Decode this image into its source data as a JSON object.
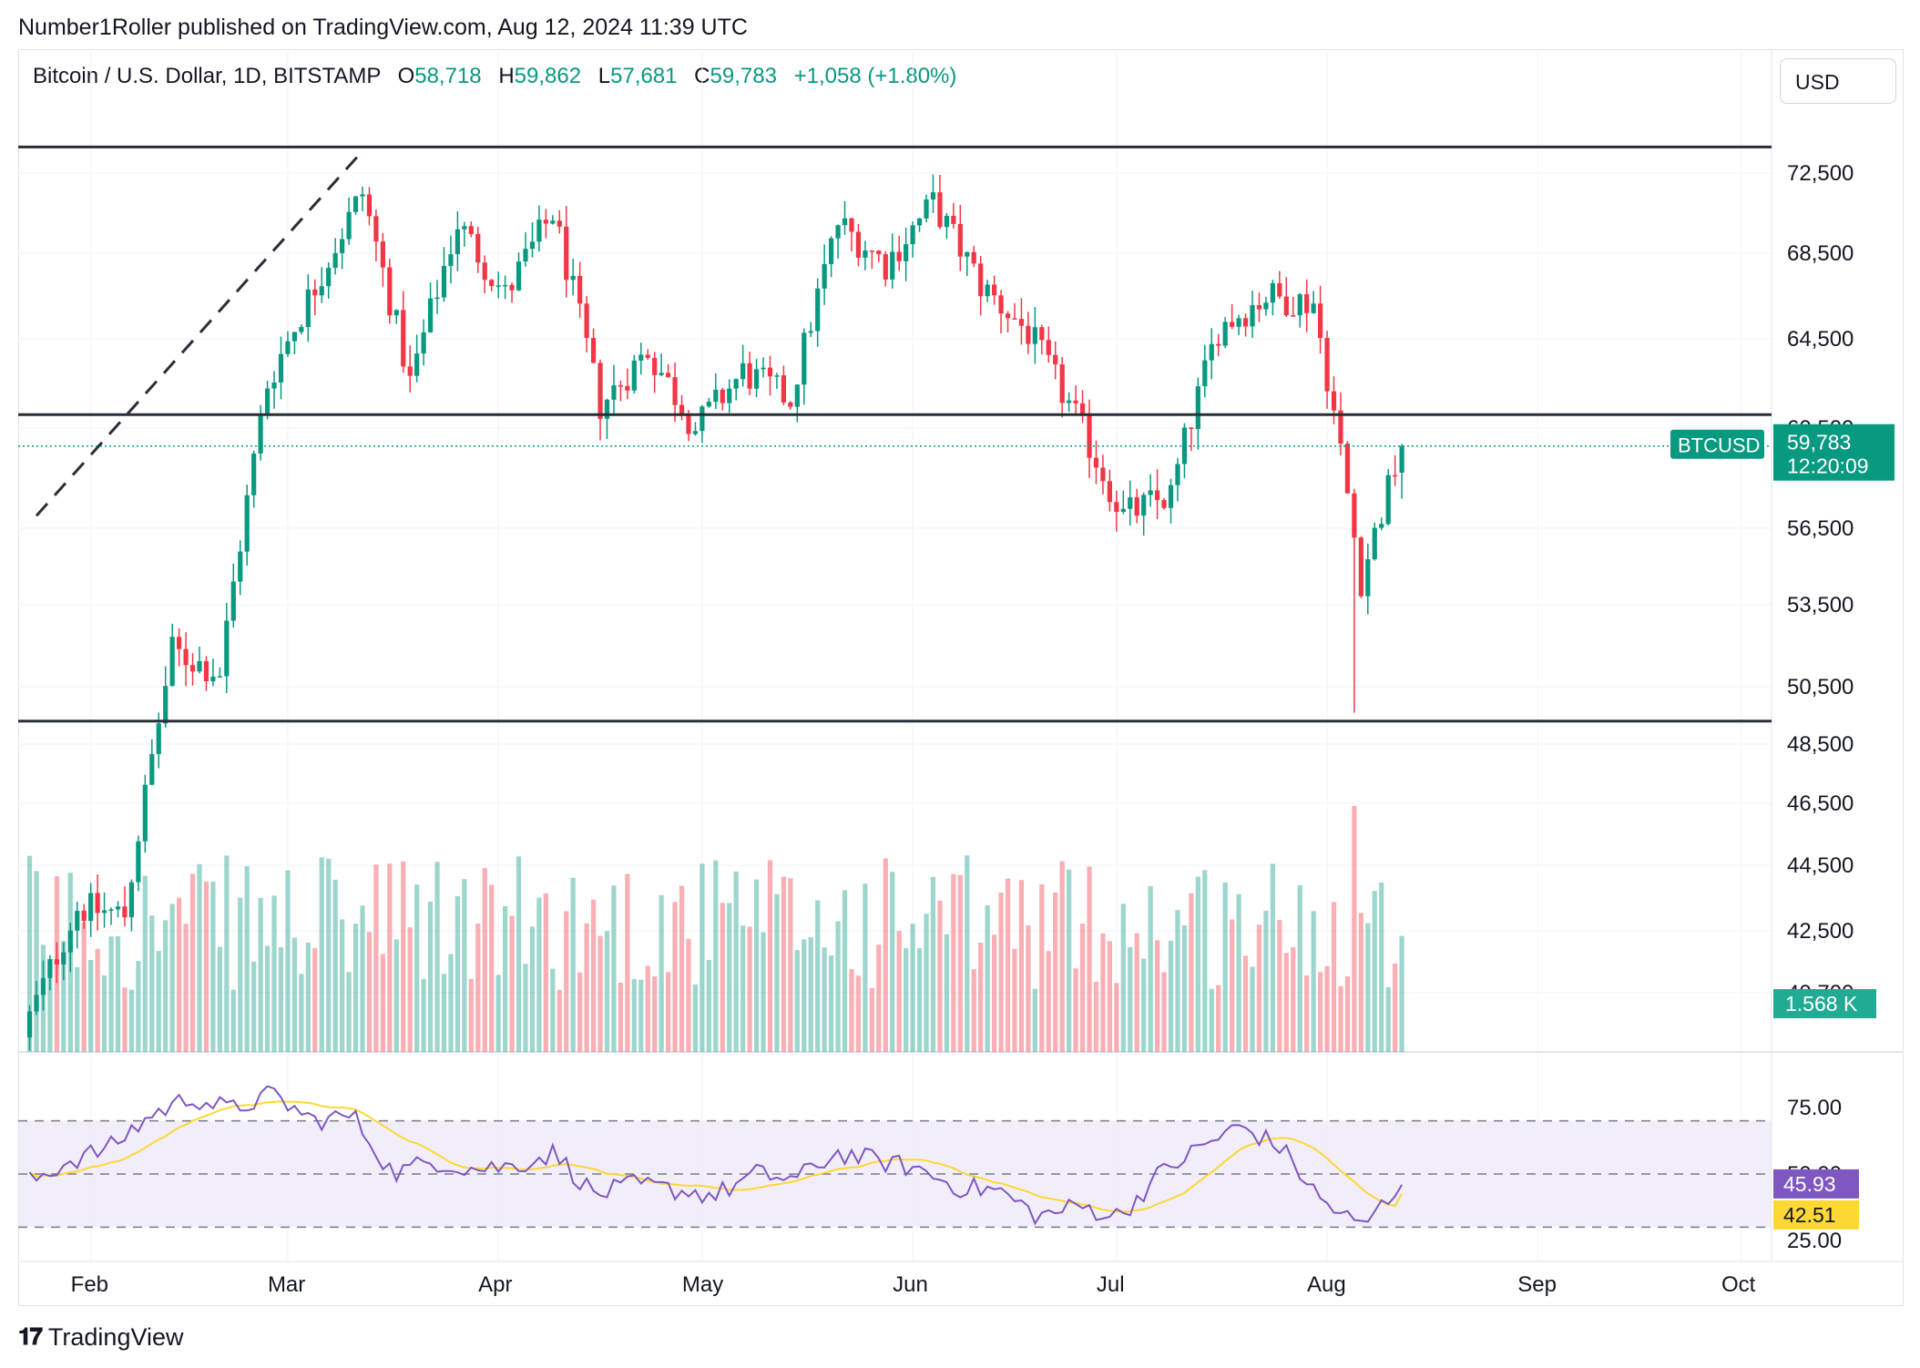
{
  "header": {
    "published_by": "Number1Roller published on TradingView.com, Aug 12, 2024 11:39 UTC",
    "symbol_line": "Bitcoin / U.S. Dollar, 1D, BITSTAMP",
    "open_label": "O",
    "open": "58,718",
    "high_label": "H",
    "high": "59,862",
    "low_label": "L",
    "low": "57,681",
    "close_label": "C",
    "close": "59,783",
    "change": "+1,058 (+1.80%)",
    "currency_button": "USD"
  },
  "footer": {
    "logo_icon": "tradingview-logo-icon",
    "brand": "TradingView"
  },
  "colors": {
    "up": "#089981",
    "down": "#f23645",
    "rsi": "#7e57c2",
    "rsi_ma": "#fdd835",
    "rsi_band": "#ede7f6"
  },
  "chart_data": [
    {
      "type": "candlestick",
      "price_axis_ticks": [
        "72,500",
        "68,500",
        "64,500",
        "60,500",
        "56,500",
        "53,500",
        "50,500",
        "48,500",
        "46,500",
        "44,500",
        "42,500",
        "40,700"
      ],
      "price_axis_values": [
        72500,
        68500,
        64500,
        60500,
        56500,
        53500,
        50500,
        48500,
        46500,
        44500,
        42500,
        40700
      ],
      "time_axis_ticks": [
        "Feb",
        "Mar",
        "Apr",
        "May",
        "Jun",
        "Jul",
        "Aug",
        "Sep",
        "Oct"
      ],
      "last_price": {
        "symbol": "BTCUSD",
        "value": "59,783",
        "countdown": "12:20:09"
      },
      "volume_badge": "1.568 K",
      "horizontal_levels": [
        73800,
        61100,
        49300
      ],
      "trendline": {
        "from": [
          "2024-01-24",
          57000
        ],
        "to": [
          "2024-03-12",
          73600
        ]
      },
      "ohlc_sample": {
        "dates": [
          "2024-01-23",
          "2024-01-30",
          "2024-02-06",
          "2024-02-13",
          "2024-02-20",
          "2024-02-27",
          "2024-03-05",
          "2024-03-12",
          "2024-03-19",
          "2024-03-26",
          "2024-04-02",
          "2024-04-09",
          "2024-04-16",
          "2024-04-23",
          "2024-04-30",
          "2024-05-07",
          "2024-05-14",
          "2024-05-21",
          "2024-05-28",
          "2024-06-04",
          "2024-06-11",
          "2024-06-18",
          "2024-06-25",
          "2024-07-02",
          "2024-07-09",
          "2024-07-16",
          "2024-07-23",
          "2024-07-30",
          "2024-08-06",
          "2024-08-12"
        ],
        "close": [
          40000,
          43200,
          43000,
          51800,
          51000,
          62500,
          67000,
          71500,
          62500,
          70000,
          66500,
          70500,
          61500,
          64000,
          60500,
          63000,
          61800,
          70000,
          68000,
          71000,
          67000,
          64800,
          61000,
          57000,
          57800,
          65000,
          66500,
          66200,
          54500,
          59783
        ]
      }
    },
    {
      "type": "line",
      "name": "RSI",
      "axis_ticks": [
        "75.00",
        "50.00",
        "25.00"
      ],
      "axis_values": [
        75,
        50,
        25
      ],
      "current_rsi": "45.93",
      "current_ma": "42.51",
      "bands": [
        70,
        30
      ],
      "rsi_sample": [
        47,
        55,
        60,
        72,
        79,
        74,
        80,
        70,
        72,
        50,
        55,
        52,
        53,
        58,
        42,
        46,
        44,
        42,
        50,
        48,
        58,
        55,
        52,
        45,
        44,
        34,
        38,
        34,
        50,
        60,
        68,
        60,
        40,
        30,
        46
      ]
    }
  ]
}
